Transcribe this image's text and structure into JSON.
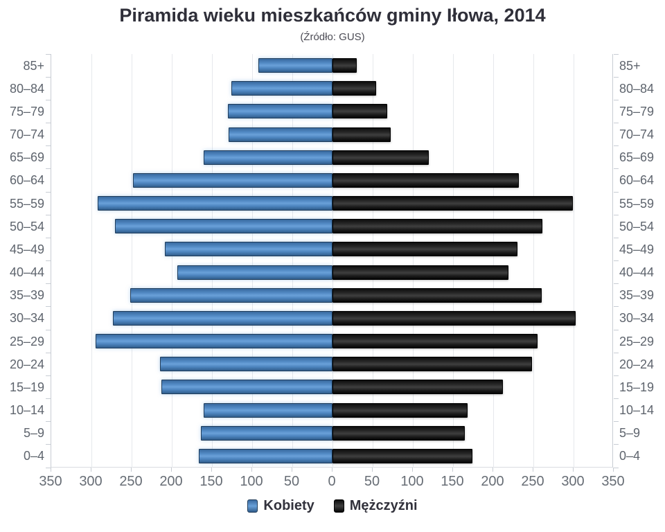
{
  "title": {
    "text": "Piramida wieku mieszkańców gminy Iłowa, 2014",
    "subtitle": "(Źródło: GUS)"
  },
  "colors": {
    "kobiety": "#4f87c1",
    "mezczyzni": "#1c1c1c",
    "gridline": "#e6e8ec",
    "axis_line": "#c7ccd3",
    "tick_label": "#676d75",
    "age_label": "#5e646d",
    "title_text": "#2f2f39"
  },
  "chart_data": {
    "type": "bar",
    "variant": "population-pyramid",
    "title": "Piramida wieku mieszkańców gminy Iłowa, 2014",
    "subtitle": "(Źródło: GUS)",
    "categories": [
      "85+",
      "80–84",
      "75–79",
      "70–74",
      "65–69",
      "60–64",
      "55–59",
      "50–54",
      "45–49",
      "40–44",
      "35–39",
      "30–34",
      "25–29",
      "20–24",
      "15–19",
      "10–14",
      "5–9",
      "0–4"
    ],
    "series": [
      {
        "name": "Kobiety",
        "side": "left",
        "color": "#4f87c1",
        "values": [
          92,
          126,
          130,
          129,
          160,
          248,
          292,
          271,
          209,
          193,
          252,
          273,
          295,
          215,
          213,
          160,
          164,
          166
        ]
      },
      {
        "name": "Mężczyźni",
        "side": "right",
        "color": "#1c1c1c",
        "values": [
          30,
          54,
          68,
          72,
          120,
          232,
          299,
          261,
          230,
          219,
          260,
          303,
          255,
          248,
          212,
          168,
          165,
          174
        ]
      }
    ],
    "x_axis": {
      "min": -350,
      "max": 350,
      "tick_interval": 50,
      "label_format": "absolute",
      "tick_values": [
        -350,
        -300,
        -250,
        -200,
        -150,
        -100,
        -50,
        0,
        50,
        100,
        150,
        200,
        250,
        300,
        350
      ],
      "tick_labels": [
        "350",
        "300",
        "250",
        "200",
        "150",
        "100",
        "50",
        "0",
        "50",
        "100",
        "150",
        "200",
        "250",
        "300",
        "350"
      ]
    },
    "grid": true,
    "legend_position": "bottom",
    "category_labels_both_sides": true
  }
}
